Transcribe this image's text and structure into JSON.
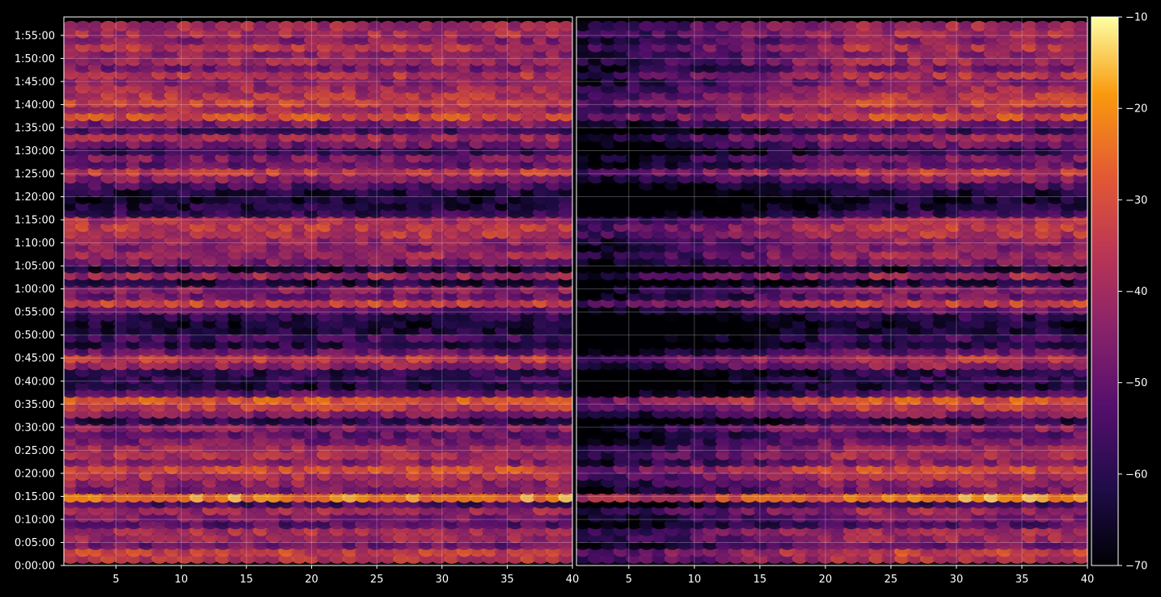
{
  "chart_data": {
    "type": "heatmap",
    "title": "",
    "colormap": "inferno",
    "background_color": "#000000",
    "grid": true,
    "color_range": [
      -70,
      -10
    ],
    "colorbar": {
      "location": "right",
      "ticks": [
        -10,
        -20,
        -30,
        -40,
        -50,
        -60,
        -70
      ],
      "tick_labels": [
        "−10",
        "−20",
        "−30",
        "−40",
        "−50",
        "−60",
        "−70"
      ]
    },
    "y_axis": {
      "range_seconds": [
        0,
        7140
      ],
      "tick_labels": [
        "0:00:00",
        "0:05:00",
        "0:10:00",
        "0:15:00",
        "0:20:00",
        "0:25:00",
        "0:30:00",
        "0:35:00",
        "0:40:00",
        "0:45:00",
        "0:50:00",
        "0:55:00",
        "1:00:00",
        "1:05:00",
        "1:10:00",
        "1:15:00",
        "1:20:00",
        "1:25:00",
        "1:30:00",
        "1:35:00",
        "1:40:00",
        "1:45:00",
        "1:50:00",
        "1:55:00"
      ]
    },
    "panels": [
      {
        "xlim": [
          1,
          40
        ],
        "x_ticks": [
          5,
          10,
          15,
          20,
          25,
          30,
          35,
          40
        ],
        "x_tick_labels": [
          "5",
          "10",
          "15",
          "20",
          "25",
          "30",
          "35",
          "40"
        ],
        "style": "strong"
      },
      {
        "xlim": [
          1,
          40
        ],
        "x_ticks": [
          5,
          10,
          15,
          20,
          25,
          30,
          35,
          40
        ],
        "x_tick_labels": [
          "5",
          "10",
          "15",
          "20",
          "25",
          "30",
          "35",
          "40"
        ],
        "style": "fading"
      }
    ],
    "row_levels": [
      {
        "t_min": 1.5,
        "level": -36
      },
      {
        "t_min": 3.0,
        "level": -32
      },
      {
        "t_min": 4.5,
        "level": -48
      },
      {
        "t_min": 6.0,
        "level": -40
      },
      {
        "t_min": 7.5,
        "level": -38
      },
      {
        "t_min": 9.0,
        "level": -52
      },
      {
        "t_min": 10.5,
        "level": -46
      },
      {
        "t_min": 12.0,
        "level": -40
      },
      {
        "t_min": 13.5,
        "level": -55
      },
      {
        "t_min": 14.8,
        "level": -20
      },
      {
        "t_min": 16.5,
        "level": -46
      },
      {
        "t_min": 18.0,
        "level": -42
      },
      {
        "t_min": 19.5,
        "level": -36
      },
      {
        "t_min": 21.0,
        "level": -30
      },
      {
        "t_min": 22.5,
        "level": -44
      },
      {
        "t_min": 24.0,
        "level": -38
      },
      {
        "t_min": 25.5,
        "level": -40
      },
      {
        "t_min": 27.0,
        "level": -46
      },
      {
        "t_min": 28.5,
        "level": -50
      },
      {
        "t_min": 30.0,
        "level": -42
      },
      {
        "t_min": 31.5,
        "level": -60
      },
      {
        "t_min": 33.0,
        "level": -44
      },
      {
        "t_min": 34.5,
        "level": -34
      },
      {
        "t_min": 36.0,
        "level": -28
      },
      {
        "t_min": 37.5,
        "level": -52
      },
      {
        "t_min": 39.0,
        "level": -62
      },
      {
        "t_min": 40.5,
        "level": -58
      },
      {
        "t_min": 42.0,
        "level": -60
      },
      {
        "t_min": 43.5,
        "level": -42
      },
      {
        "t_min": 45.0,
        "level": -34
      },
      {
        "t_min": 46.5,
        "level": -50
      },
      {
        "t_min": 48.0,
        "level": -60
      },
      {
        "t_min": 49.5,
        "level": -56
      },
      {
        "t_min": 51.0,
        "level": -62
      },
      {
        "t_min": 52.5,
        "level": -64
      },
      {
        "t_min": 54.0,
        "level": -60
      },
      {
        "t_min": 55.5,
        "level": -50
      },
      {
        "t_min": 57.0,
        "level": -32
      },
      {
        "t_min": 58.5,
        "level": -48
      },
      {
        "t_min": 60.0,
        "level": -44
      },
      {
        "t_min": 61.5,
        "level": -62
      },
      {
        "t_min": 63.0,
        "level": -40
      },
      {
        "t_min": 64.5,
        "level": -64
      },
      {
        "t_min": 66.0,
        "level": -46
      },
      {
        "t_min": 67.5,
        "level": -40
      },
      {
        "t_min": 69.0,
        "level": -44
      },
      {
        "t_min": 70.5,
        "level": -42
      },
      {
        "t_min": 72.0,
        "level": -36
      },
      {
        "t_min": 73.5,
        "level": -34
      },
      {
        "t_min": 75.0,
        "level": -38
      },
      {
        "t_min": 76.5,
        "level": -58
      },
      {
        "t_min": 78.0,
        "level": -62
      },
      {
        "t_min": 79.5,
        "level": -64
      },
      {
        "t_min": 81.0,
        "level": -62
      },
      {
        "t_min": 82.5,
        "level": -54
      },
      {
        "t_min": 84.0,
        "level": -44
      },
      {
        "t_min": 85.5,
        "level": -34
      },
      {
        "t_min": 87.0,
        "level": -50
      },
      {
        "t_min": 88.5,
        "level": -46
      },
      {
        "t_min": 90.0,
        "level": -58
      },
      {
        "t_min": 91.5,
        "level": -48
      },
      {
        "t_min": 93.0,
        "level": -40
      },
      {
        "t_min": 94.5,
        "level": -56
      },
      {
        "t_min": 96.0,
        "level": -46
      },
      {
        "t_min": 97.5,
        "level": -30
      },
      {
        "t_min": 99.0,
        "level": -40
      },
      {
        "t_min": 100.5,
        "level": -32
      },
      {
        "t_min": 102.0,
        "level": -36
      },
      {
        "t_min": 103.5,
        "level": -40
      },
      {
        "t_min": 105.0,
        "level": -44
      },
      {
        "t_min": 106.5,
        "level": -36
      },
      {
        "t_min": 108.0,
        "level": -46
      },
      {
        "t_min": 109.5,
        "level": -40
      },
      {
        "t_min": 111.0,
        "level": -42
      },
      {
        "t_min": 112.5,
        "level": -36
      },
      {
        "t_min": 114.0,
        "level": -44
      },
      {
        "t_min": 115.5,
        "level": -38
      },
      {
        "t_min": 117.0,
        "level": -40
      }
    ]
  }
}
